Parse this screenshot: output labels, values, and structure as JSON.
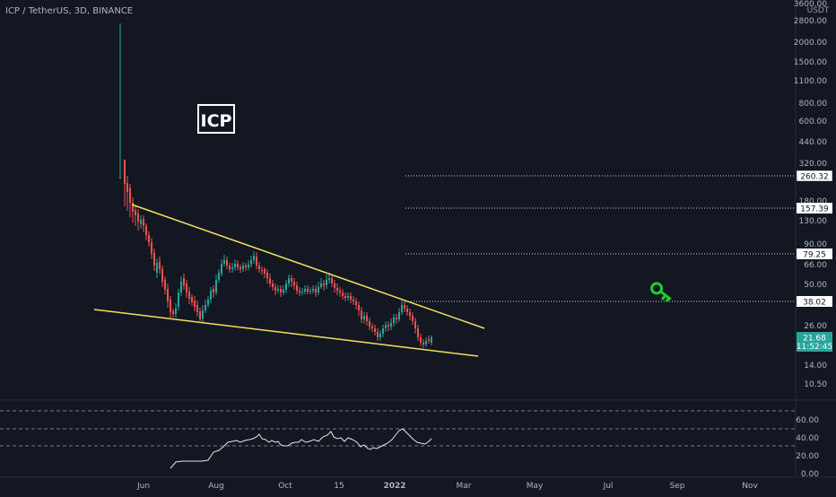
{
  "symbol_title": "ICP / TetherUS, 3D, BINANCE",
  "currency_label": "USDT",
  "watermark_label": "ICP",
  "price_ticks": [
    "3600.00",
    "2800.00",
    "2000.00",
    "1500.00",
    "1100.00",
    "800.00",
    "600.00",
    "440.00",
    "320.00",
    "180.00",
    "130.00",
    "90.00",
    "66.00",
    "50.00",
    "26.00",
    "14.00",
    "10.50"
  ],
  "level_badges": [
    "260.32",
    "157.39",
    "79.25",
    "38.02"
  ],
  "last_price": {
    "price": "21.68",
    "countdown": "11:52:45"
  },
  "time_ticks": [
    "Jun",
    "Aug",
    "Oct",
    "15",
    "2022",
    "Mar",
    "May",
    "Jul",
    "Sep",
    "Nov"
  ],
  "rsi_ticks": [
    "60.00",
    "40.00",
    "20.00",
    "0.00"
  ],
  "colors": {
    "background": "#131722",
    "bull": "#26a69a",
    "bear": "#ef5350",
    "trendline": "#f5e05b",
    "key_icon": "#19d129",
    "last_price_badge": "#26a69a",
    "text": "#b2b5be"
  },
  "icons": [
    "key-icon"
  ]
}
